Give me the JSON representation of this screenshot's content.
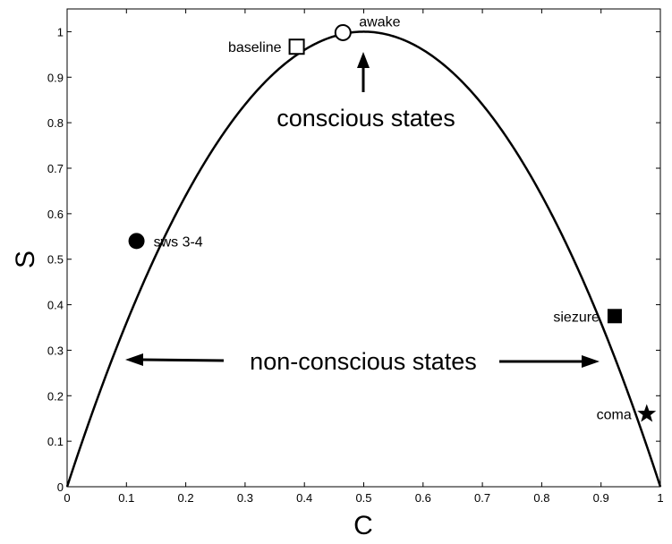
{
  "chart_data": {
    "type": "line",
    "title": "",
    "xlabel": "C",
    "ylabel": "S",
    "xlim": [
      0,
      1
    ],
    "ylim": [
      0,
      1.05
    ],
    "grid": false,
    "xticks": [
      "0",
      "0.1",
      "0.2",
      "0.3",
      "0.4",
      "0.5",
      "0.6",
      "0.7",
      "0.8",
      "0.9",
      "1"
    ],
    "yticks": [
      "0",
      "0.1",
      "0.2",
      "0.3",
      "0.4",
      "0.5",
      "0.6",
      "0.7",
      "0.8",
      "0.9",
      "1"
    ],
    "curve": {
      "formula": "S = 4C(1-C)",
      "color": "#000000"
    },
    "points": [
      {
        "label": "sws 3-4",
        "x": 0.117,
        "y": 0.54,
        "marker": "filled-circle"
      },
      {
        "label": "baseline",
        "x": 0.387,
        "y": 0.967,
        "marker": "open-square"
      },
      {
        "label": "awake",
        "x": 0.465,
        "y": 0.998,
        "marker": "open-circle"
      },
      {
        "label": "siezure",
        "x": 0.923,
        "y": 0.375,
        "marker": "filled-square"
      },
      {
        "label": "coma",
        "x": 0.977,
        "y": 0.16,
        "marker": "filled-star"
      }
    ],
    "annotations": {
      "conscious": "conscious states",
      "nonconscious": "non-conscious states"
    }
  }
}
